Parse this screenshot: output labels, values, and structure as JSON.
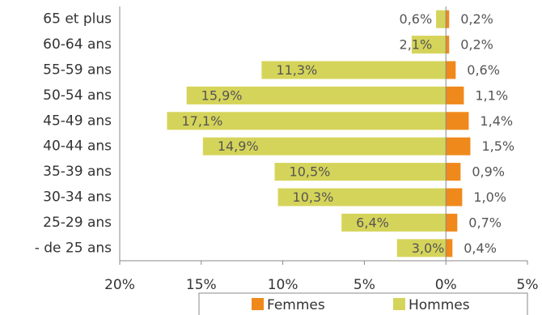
{
  "chart_data": {
    "type": "bar",
    "orientation": "horizontal",
    "categories": [
      "65 et plus",
      "60-64 ans",
      "55-59 ans",
      "50-54 ans",
      "45-49 ans",
      "40-44 ans",
      "35-39 ans",
      "30-34 ans",
      "25-29 ans",
      "- de 25 ans"
    ],
    "series": [
      {
        "name": "Femmes",
        "color": "#f0891b",
        "values": [
          0.2,
          0.2,
          0.6,
          1.1,
          1.4,
          1.5,
          0.9,
          1.0,
          0.7,
          0.4
        ],
        "value_labels": [
          "0,2%",
          "0,2%",
          "0,6%",
          "1,1%",
          "1,4%",
          "1,5%",
          "0,9%",
          "1,0%",
          "0,7%",
          "0,4%"
        ]
      },
      {
        "name": "Hommes",
        "color": "#d5d45a",
        "values": [
          -0.6,
          -2.1,
          -11.3,
          -15.9,
          -17.1,
          -14.9,
          -10.5,
          -10.3,
          -6.4,
          -3.0
        ],
        "value_labels": [
          "0,6%",
          "2,1%",
          "11,3%",
          "15,9%",
          "17,1%",
          "14,9%",
          "10,5%",
          "10,3%",
          "6,4%",
          "3,0%"
        ]
      }
    ],
    "xlim": [
      -20,
      5
    ],
    "xticks": [
      {
        "value": -20,
        "label": "20%"
      },
      {
        "value": -15,
        "label": "15%"
      },
      {
        "value": -10,
        "label": "10%"
      },
      {
        "value": -5,
        "label": "5%"
      },
      {
        "value": 0,
        "label": "0%"
      },
      {
        "value": 5,
        "label": "5%"
      }
    ],
    "legend": "bottom"
  }
}
